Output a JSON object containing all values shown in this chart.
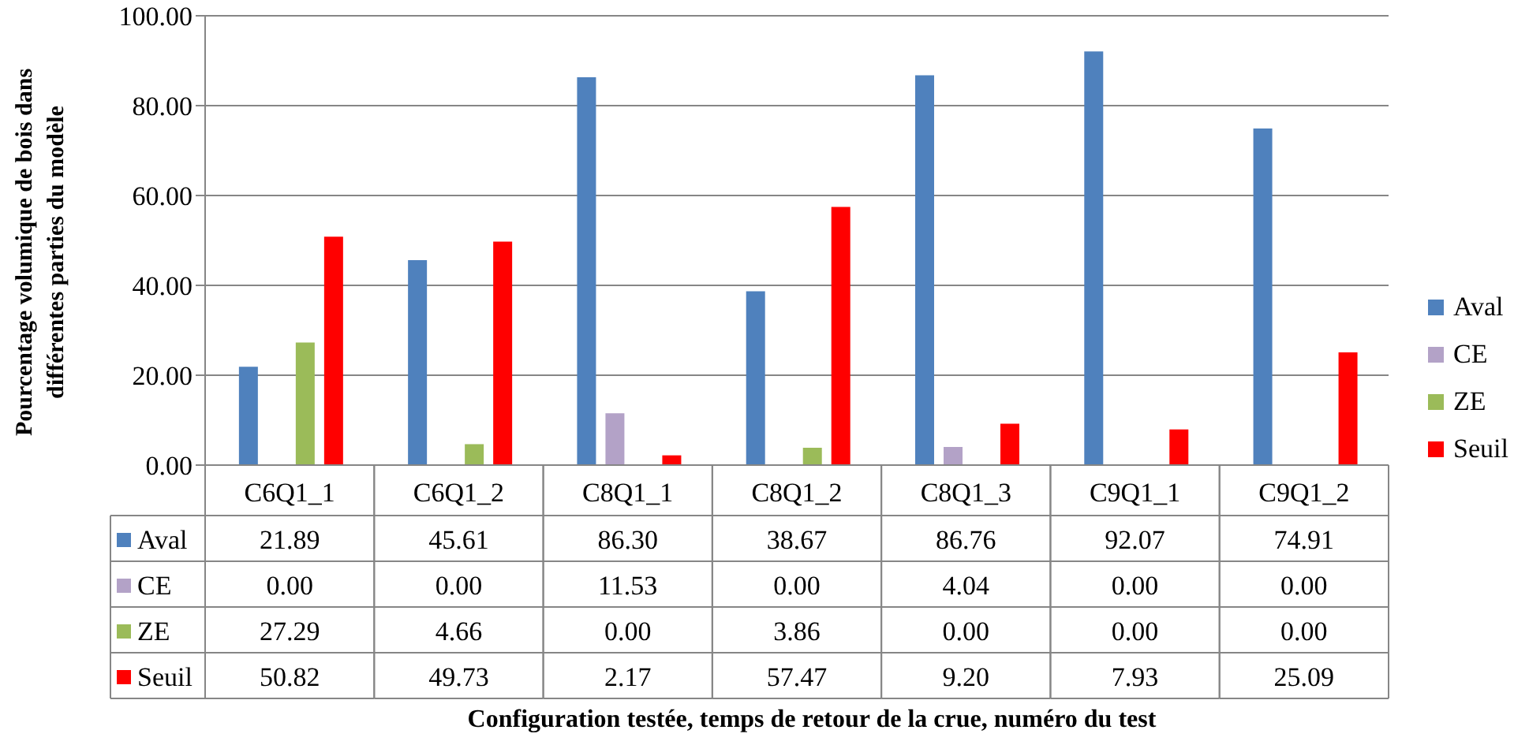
{
  "chart_data": {
    "type": "bar",
    "annotations": [
      "Configuration testée, temps de retour de la crue, numéro du test"
    ],
    "ylabel": "Pourcentage volumique de bois dans différentes parties du modèle",
    "categories": [
      "C6Q1_1",
      "C6Q1_2",
      "C8Q1_1",
      "C8Q1_2",
      "C8Q1_3",
      "C9Q1_1",
      "C9Q1_2"
    ],
    "series": [
      {
        "name": "Aval",
        "color": "#4f81bd",
        "values": [
          21.89,
          45.61,
          86.3,
          38.67,
          86.76,
          92.07,
          74.91
        ],
        "value_labels": [
          "21.89",
          "45.61",
          "86.30",
          "38.67",
          "86.76",
          "92.07",
          "74.91"
        ]
      },
      {
        "name": "CE",
        "color": "#b3a2c7",
        "values": [
          0,
          0,
          11.53,
          0,
          4.04,
          0,
          0
        ],
        "value_labels": [
          "0.00",
          "0.00",
          "11.53",
          "0.00",
          "4.04",
          "0.00",
          "0.00"
        ]
      },
      {
        "name": "ZE",
        "color": "#9bbb59",
        "values": [
          27.29,
          4.66,
          0,
          3.86,
          0,
          0,
          0
        ],
        "value_labels": [
          "27.29",
          "4.66",
          "0.00",
          "3.86",
          "0.00",
          "0.00",
          "0.00"
        ]
      },
      {
        "name": "Seuil",
        "color": "#ff0000",
        "values": [
          50.82,
          49.73,
          2.17,
          57.47,
          9.2,
          7.93,
          25.09
        ],
        "value_labels": [
          "50.82",
          "49.73",
          "2.17",
          "57.47",
          "9.20",
          "7.93",
          "25.09"
        ]
      }
    ],
    "ylim": [
      0,
      100
    ],
    "yticks": [
      {
        "value": 0,
        "label": "0.00"
      },
      {
        "value": 20,
        "label": "20.00"
      },
      {
        "value": 40,
        "label": "40.00"
      },
      {
        "value": 60,
        "label": "60.00"
      },
      {
        "value": 80,
        "label": "80.00"
      },
      {
        "value": 100,
        "label": "100.00"
      }
    ],
    "grid": "y",
    "legend": "right"
  }
}
